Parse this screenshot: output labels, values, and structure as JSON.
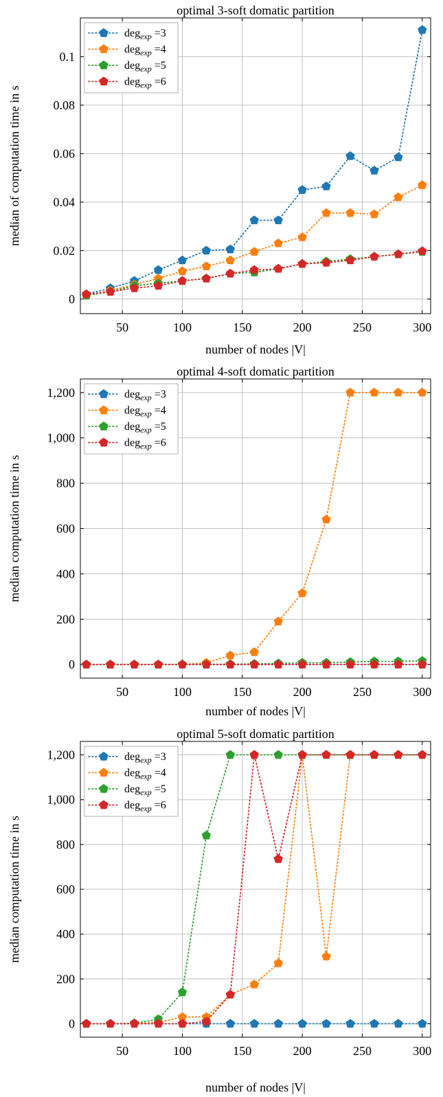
{
  "chart_data": [
    {
      "type": "line",
      "title": "optimal 3-soft domatic partition",
      "xlabel": "number of nodes |V|",
      "ylabel": "median of computation time in s",
      "xlim": [
        15,
        307
      ],
      "ylim": [
        -0.006,
        0.116
      ],
      "xticks": [
        50,
        100,
        150,
        200,
        250,
        300
      ],
      "xtick_labels": [
        "50",
        "100",
        "150",
        "200",
        "250",
        "300"
      ],
      "yticks": [
        0,
        0.02,
        0.04,
        0.06,
        0.08,
        0.1
      ],
      "ytick_labels": [
        "0",
        "0.02",
        "0.04",
        "0.06",
        "0.08",
        "0.1"
      ],
      "grid": true,
      "legend_position": "top-left",
      "x": [
        20,
        40,
        60,
        80,
        100,
        120,
        140,
        160,
        180,
        200,
        220,
        240,
        260,
        280,
        300
      ],
      "series": [
        {
          "name": "deg_exp =3",
          "color": "#1f77b4",
          "values": [
            0.002,
            0.0045,
            0.0075,
            0.012,
            0.016,
            0.02,
            0.0205,
            0.0325,
            0.0325,
            0.045,
            0.0465,
            0.059,
            0.053,
            0.0585,
            0.111
          ]
        },
        {
          "name": "deg_exp =4",
          "color": "#ff7f0e",
          "values": [
            0.0015,
            0.0035,
            0.006,
            0.0085,
            0.0115,
            0.0135,
            0.016,
            0.0195,
            0.023,
            0.0255,
            0.0355,
            0.0355,
            0.035,
            0.042,
            0.047
          ]
        },
        {
          "name": "deg_exp =5",
          "color": "#2ca02c",
          "values": [
            0.0015,
            0.003,
            0.0055,
            0.0065,
            0.0075,
            0.0085,
            0.0105,
            0.011,
            0.0125,
            0.0145,
            0.0155,
            0.0165,
            0.0175,
            0.0185,
            0.0195
          ]
        },
        {
          "name": "deg_exp =6",
          "color": "#d62728",
          "values": [
            0.002,
            0.003,
            0.0045,
            0.0055,
            0.0075,
            0.0085,
            0.0105,
            0.012,
            0.0125,
            0.0145,
            0.015,
            0.016,
            0.0175,
            0.0185,
            0.0198
          ]
        }
      ]
    },
    {
      "type": "line",
      "title": "optimal 4-soft domatic partition",
      "xlabel": "number of nodes |V|",
      "ylabel": "median computation time in s",
      "xlim": [
        15,
        307
      ],
      "ylim": [
        -60,
        1260
      ],
      "xticks": [
        50,
        100,
        150,
        200,
        250,
        300
      ],
      "xtick_labels": [
        "50",
        "100",
        "150",
        "200",
        "250",
        "300"
      ],
      "yticks": [
        0,
        200,
        400,
        600,
        800,
        1000,
        1200
      ],
      "ytick_labels": [
        "0",
        "200",
        "400",
        "600",
        "800",
        "1,000",
        "1,200"
      ],
      "grid": true,
      "legend_position": "top-left",
      "x": [
        20,
        40,
        60,
        80,
        100,
        120,
        140,
        160,
        180,
        200,
        220,
        240,
        260,
        280,
        300
      ],
      "series": [
        {
          "name": "deg_exp =3",
          "color": "#1f77b4",
          "values": [
            0,
            0,
            0,
            0,
            0,
            0,
            0,
            0,
            0,
            0,
            0,
            0,
            0,
            0,
            0
          ]
        },
        {
          "name": "deg_exp =4",
          "color": "#ff7f0e",
          "values": [
            0,
            0,
            0,
            0,
            1,
            8,
            40,
            55,
            190,
            315,
            640,
            1200,
            1200,
            1200,
            1200
          ]
        },
        {
          "name": "deg_exp =5",
          "color": "#2ca02c",
          "values": [
            0,
            0,
            0,
            0,
            1,
            1,
            2,
            3,
            5,
            8,
            8,
            11,
            14,
            14,
            16
          ]
        },
        {
          "name": "deg_exp =6",
          "color": "#d62728",
          "values": [
            0,
            0,
            0,
            0,
            0,
            0,
            0,
            0,
            0,
            0,
            0,
            0,
            0,
            0,
            0
          ]
        }
      ]
    },
    {
      "type": "line",
      "title": "optimal 5-soft domatic partition",
      "xlabel": "number of nodes |V|",
      "ylabel": "median computation time in s",
      "xlim": [
        15,
        307
      ],
      "ylim": [
        -60,
        1260
      ],
      "xticks": [
        50,
        100,
        150,
        200,
        250,
        300
      ],
      "xtick_labels": [
        "50",
        "100",
        "150",
        "200",
        "250",
        "300"
      ],
      "yticks": [
        0,
        200,
        400,
        600,
        800,
        1000,
        1200
      ],
      "ytick_labels": [
        "0",
        "200",
        "400",
        "600",
        "800",
        "1,000",
        "1,200"
      ],
      "grid": true,
      "legend_position": "top-left",
      "x": [
        20,
        40,
        60,
        80,
        100,
        120,
        140,
        160,
        180,
        200,
        220,
        240,
        260,
        280,
        300
      ],
      "series": [
        {
          "name": "deg_exp =3",
          "color": "#1f77b4",
          "values": [
            0,
            0,
            0,
            0,
            0,
            0,
            0,
            0,
            0,
            0,
            0,
            0,
            0,
            0,
            0
          ]
        },
        {
          "name": "deg_exp =4",
          "color": "#ff7f0e",
          "values": [
            0,
            0,
            2,
            5,
            30,
            30,
            130,
            175,
            270,
            1200,
            300,
            1200,
            1200,
            1200,
            1200
          ]
        },
        {
          "name": "deg_exp =5",
          "color": "#2ca02c",
          "values": [
            0,
            0,
            2,
            20,
            140,
            840,
            1200,
            1200,
            1200,
            1200,
            1200,
            1200,
            1200,
            1200,
            1200
          ]
        },
        {
          "name": "deg_exp =6",
          "color": "#d62728",
          "values": [
            0,
            0,
            0,
            0,
            0,
            10,
            130,
            1200,
            735,
            1200,
            1200,
            1200,
            1200,
            1200,
            1200
          ]
        }
      ]
    }
  ]
}
